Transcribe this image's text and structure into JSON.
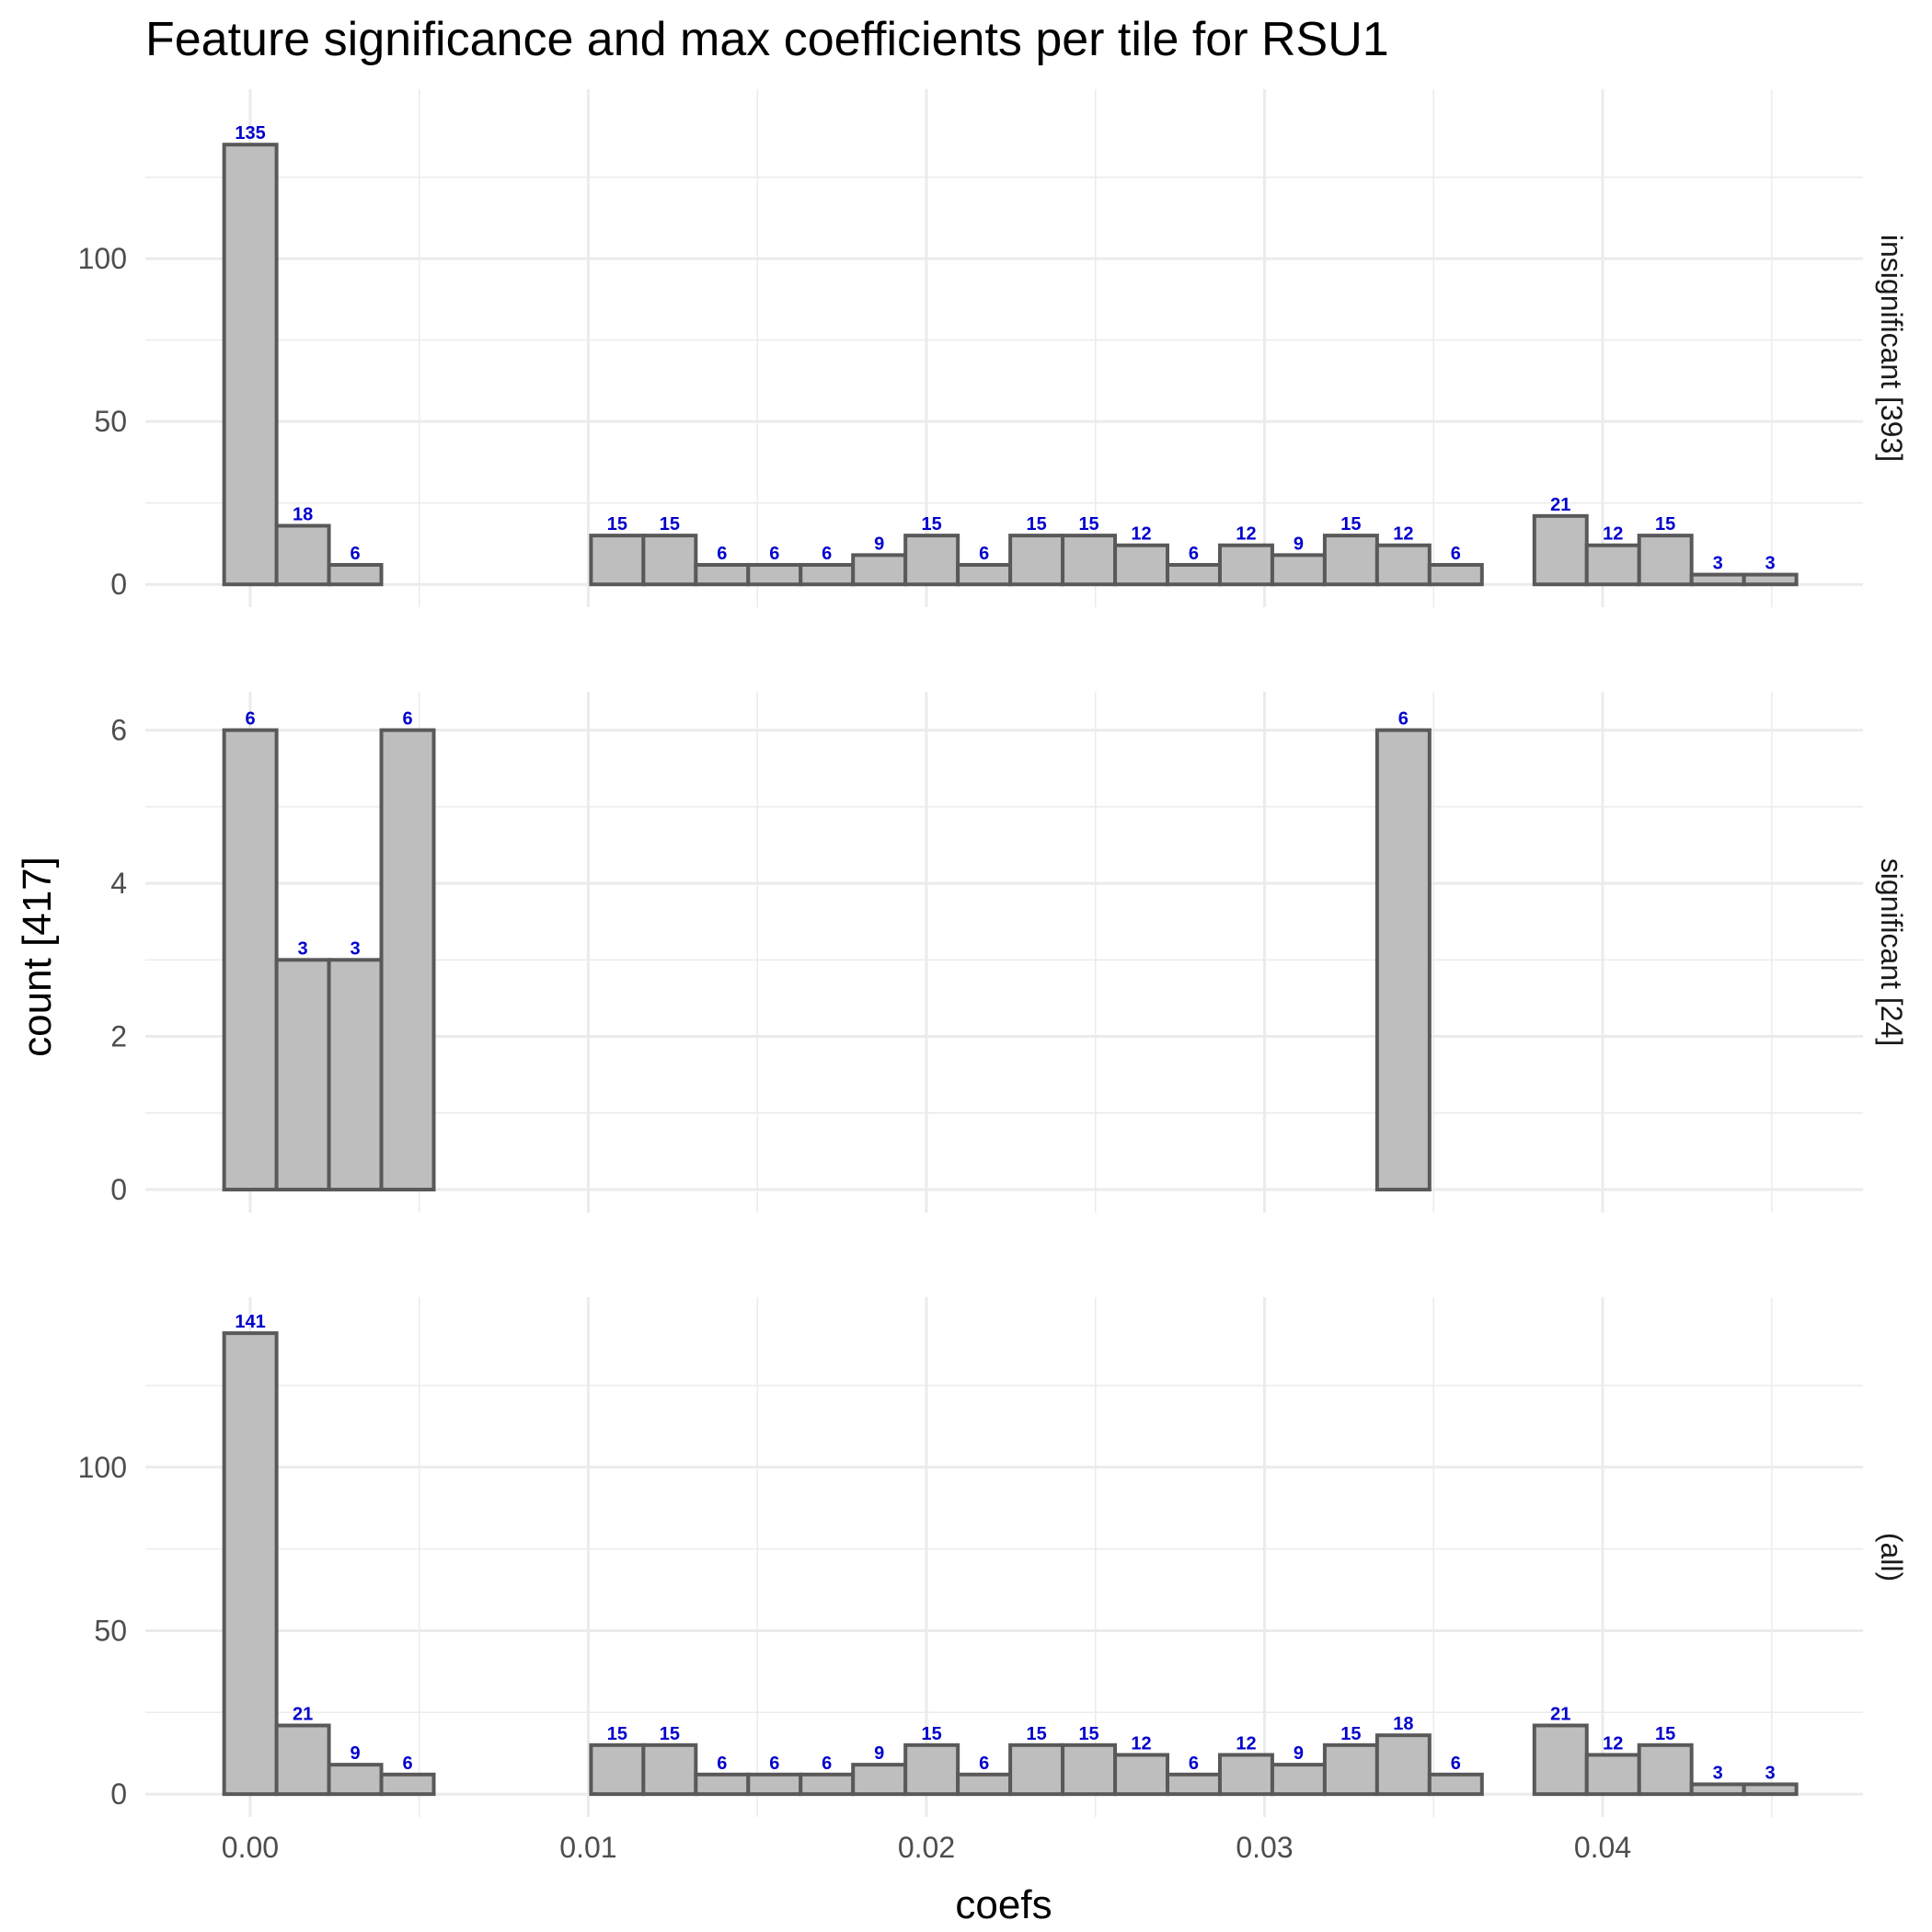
{
  "chart_data": {
    "type": "bar",
    "title": "Feature significance and max coefficients per tile for RSU1",
    "xlabel": "coefs",
    "ylabel": "count [417]",
    "bin_width": 0.00155,
    "bin_starts": [
      -0.00077,
      0.00078,
      0.00233,
      0.00388,
      0.00543,
      0.00698,
      0.00853,
      0.01008,
      0.01163,
      0.01318,
      0.01473,
      0.01628,
      0.01783,
      0.01938,
      0.02093,
      0.02248,
      0.02403,
      0.02558,
      0.02713,
      0.02868,
      0.03023,
      0.03178,
      0.03333,
      0.03488,
      0.03643,
      0.03798,
      0.03953,
      0.04108,
      0.04263,
      0.04418
    ],
    "xlim": [
      -0.0031,
      0.0477
    ],
    "x_ticks": [
      0.0,
      0.01,
      0.02,
      0.03,
      0.04
    ],
    "x_tick_labels": [
      "0.00",
      "0.01",
      "0.02",
      "0.03",
      "0.04"
    ],
    "grid": true,
    "bar_fill": "#bebebe",
    "bar_stroke": "#595959",
    "label_color": "#0000cc",
    "panels": [
      {
        "strip": "insignificant [393]",
        "ylim": [
          -7,
          152
        ],
        "y_ticks": [
          0,
          50,
          100
        ],
        "y_tick_labels": [
          "0",
          "50",
          "100"
        ],
        "values": [
          135,
          18,
          6,
          0,
          0,
          0,
          0,
          15,
          15,
          6,
          6,
          6,
          9,
          15,
          6,
          15,
          15,
          12,
          6,
          12,
          9,
          15,
          12,
          6,
          0,
          21,
          12,
          15,
          3,
          3
        ]
      },
      {
        "strip": "significant [24]",
        "ylim": [
          -0.3,
          6.5
        ],
        "y_ticks": [
          0,
          2,
          4,
          6
        ],
        "y_tick_labels": [
          "0",
          "2",
          "4",
          "6"
        ],
        "values": [
          6,
          3,
          3,
          6,
          0,
          0,
          0,
          0,
          0,
          0,
          0,
          0,
          0,
          0,
          0,
          0,
          0,
          0,
          0,
          0,
          0,
          0,
          6,
          0,
          0,
          0,
          0,
          0,
          0,
          0
        ]
      },
      {
        "strip": "(all)",
        "ylim": [
          -7,
          152
        ],
        "y_ticks": [
          0,
          50,
          100
        ],
        "y_tick_labels": [
          "0",
          "50",
          "100"
        ],
        "values": [
          141,
          21,
          9,
          6,
          0,
          0,
          0,
          15,
          15,
          6,
          6,
          6,
          9,
          15,
          6,
          15,
          15,
          12,
          6,
          12,
          9,
          15,
          18,
          6,
          0,
          21,
          12,
          15,
          3,
          3
        ]
      }
    ]
  }
}
